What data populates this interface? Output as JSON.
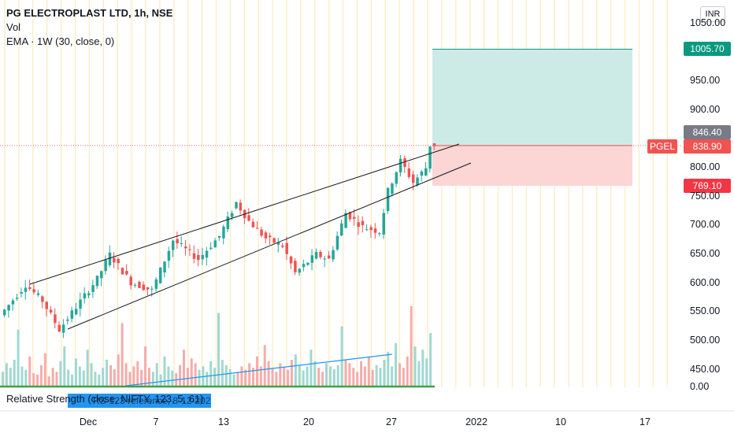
{
  "header": {
    "title": "PG ELECTROPLAST LTD, 1h, NSE",
    "vol_label": "Vol",
    "ema_label": "EMA · 1W (30, close, 0)"
  },
  "currency_button": "INR",
  "indicator": {
    "rs_label": "Relative Strength (close, NIFTY, 123, 5, 61)",
    "rs_chip": "RS-123 reference, 8-12-2021"
  },
  "badges": {
    "target": "1005.70",
    "last": "846.40",
    "ticker": "PGEL",
    "current": "838.90",
    "stop": "769.10"
  },
  "y_ticks": [
    "1050.00",
    "950.00",
    "900.00",
    "800.00",
    "750.00",
    "700.00",
    "650.00",
    "600.00",
    "550.00",
    "500.00",
    "450.00",
    "0.00"
  ],
  "x_ticks": [
    "Dec",
    "7",
    "13",
    "20",
    "27",
    "2022",
    "10",
    "17"
  ],
  "colors": {
    "up": "#26a69a",
    "down": "#ef5350",
    "target_zone": "#cdebe6",
    "stop_zone": "#fcd5d5",
    "target_badge": "#089981",
    "stop_badge": "#f23645",
    "last_badge": "#787b86",
    "current_badge": "#f05350",
    "rs_line": "#26a69a",
    "trend_line": "#2196f3"
  },
  "chart_data": {
    "type": "candlestick",
    "title": "PG ELECTROPLAST LTD, 1h, NSE",
    "ylim": [
      420,
      1065
    ],
    "x_categories": [
      "Dec",
      "7",
      "13",
      "20",
      "27",
      "2022",
      "10",
      "17"
    ],
    "key_prices": {
      "target": 1005.7,
      "last": 846.4,
      "current": 838.9,
      "stop": 769.1
    },
    "pattern": "rising wedge",
    "anchors": [
      {
        "d": 0,
        "p": 545
      },
      {
        "d": 6,
        "p": 598
      },
      {
        "d": 10,
        "p": 570
      },
      {
        "d": 14,
        "p": 520
      },
      {
        "d": 23,
        "p": 608
      },
      {
        "d": 26,
        "p": 650
      },
      {
        "d": 31,
        "p": 602
      },
      {
        "d": 36,
        "p": 588
      },
      {
        "d": 41,
        "p": 675
      },
      {
        "d": 47,
        "p": 642
      },
      {
        "d": 52,
        "p": 682
      },
      {
        "d": 56,
        "p": 740
      },
      {
        "d": 59,
        "p": 708
      },
      {
        "d": 63,
        "p": 678
      },
      {
        "d": 67,
        "p": 665
      },
      {
        "d": 70,
        "p": 618
      },
      {
        "d": 75,
        "p": 650
      },
      {
        "d": 78,
        "p": 642
      },
      {
        "d": 82,
        "p": 722
      },
      {
        "d": 86,
        "p": 698
      },
      {
        "d": 90,
        "p": 690
      },
      {
        "d": 92,
        "p": 760
      },
      {
        "d": 95,
        "p": 812
      },
      {
        "d": 98,
        "p": 775
      },
      {
        "d": 101,
        "p": 800
      },
      {
        "d": 102,
        "p": 840
      }
    ],
    "volume_bars": [
      22,
      35,
      28,
      40,
      85,
      30,
      25,
      45,
      20,
      18,
      32,
      50,
      15,
      28,
      22,
      38,
      60,
      25,
      18,
      42,
      30,
      24,
      55,
      35,
      22,
      18,
      28,
      40,
      32,
      26,
      48,
      95,
      35,
      22,
      30,
      38,
      25,
      60,
      28,
      22,
      35,
      18,
      45,
      30,
      24,
      20,
      32,
      55,
      28,
      42,
      35,
      25,
      30,
      22,
      38,
      28,
      110,
      40,
      32,
      26,
      18,
      22,
      30,
      25,
      35,
      28,
      45,
      30,
      62,
      38,
      28,
      22,
      35,
      30,
      25,
      40,
      48,
      32,
      24,
      30,
      55,
      38,
      28,
      22,
      35,
      30,
      26,
      32,
      90,
      40,
      35,
      28,
      22,
      38,
      30,
      45,
      25,
      32,
      28,
      40,
      52,
      30,
      65,
      35,
      28,
      45,
      120,
      60,
      38,
      55,
      42,
      80
    ]
  }
}
